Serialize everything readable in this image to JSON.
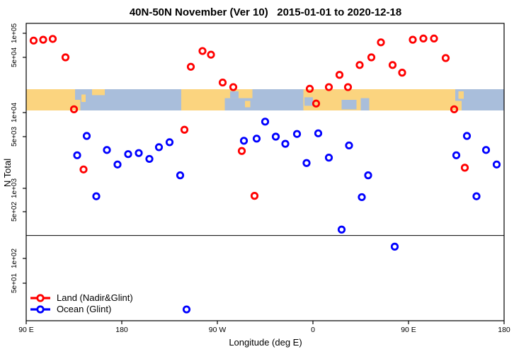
{
  "chart_title": "40N-50N November (Ver 10)   2015-01-01 to 2020-12-18",
  "legend": {
    "items": [
      {
        "label": "Land (Nadir&Glint)",
        "color": "#ff0000"
      },
      {
        "label": "Ocean (Glint)",
        "color": "#0000ff"
      }
    ]
  },
  "chart_data": {
    "type": "scatter",
    "title": "40N-50N November (Ver 10)   2015-01-01 to 2020-12-18",
    "xlabel": "Longitude (deg E)",
    "ylabel": "N Total",
    "x_axis": {
      "description": "longitude wrapping eastward; deg = degrees east of 90E along axis",
      "span_deg": 450,
      "ticks": [
        {
          "deg": 0,
          "label": "90 E"
        },
        {
          "deg": 90,
          "label": "180"
        },
        {
          "deg": 180,
          "label": "90 W"
        },
        {
          "deg": 270,
          "label": "0"
        },
        {
          "deg": 360,
          "label": "90 E"
        },
        {
          "deg": 450,
          "label": "180"
        }
      ]
    },
    "y_axis": {
      "scale": "log",
      "ticks": [
        {
          "value": 100000,
          "label": "1e+05"
        },
        {
          "value": 50000,
          "label": "5e+04"
        },
        {
          "value": 10000,
          "label": "1e+04"
        },
        {
          "value": 5000,
          "label": "5e+03"
        },
        {
          "value": 1000,
          "label": "1e+03"
        },
        {
          "value": 500,
          "label": "5e+02"
        },
        {
          "value": 100,
          "label": "1e+02"
        },
        {
          "value": 50,
          "label": "5e+01"
        }
      ]
    },
    "hline_value": 220,
    "map_band": {
      "description": "40N-50N latitude strip map drawn across plot, approx n range 10500-20000",
      "land_color": "#fbd47f",
      "ocean_color": "#a9bedb",
      "segments": [
        {
          "surface": "land",
          "from": 0,
          "to": 46
        },
        {
          "surface": "ocean",
          "from": 46,
          "to": 146
        },
        {
          "surface": "land",
          "from": 146,
          "to": 187
        },
        {
          "surface": "ocean",
          "from": 187,
          "to": 261
        },
        {
          "surface": "land",
          "from": 261,
          "to": 404
        },
        {
          "surface": "ocean",
          "from": 404,
          "to": 450
        }
      ],
      "patches": [
        {
          "surface": "land",
          "from": 46,
          "to": 51,
          "top": 0.5,
          "bot": 1
        },
        {
          "surface": "land",
          "from": 52,
          "to": 56,
          "top": 0.25,
          "bot": 0.6
        },
        {
          "surface": "land",
          "from": 62,
          "to": 74,
          "top": 0,
          "bot": 0.28
        },
        {
          "surface": "land",
          "from": 187,
          "to": 213,
          "top": 0,
          "bot": 0.42
        },
        {
          "surface": "ocean",
          "from": 192,
          "to": 200,
          "top": 0.1,
          "bot": 0.42
        },
        {
          "surface": "land",
          "from": 206,
          "to": 211,
          "top": 0.55,
          "bot": 0.85
        },
        {
          "surface": "ocean",
          "from": 262,
          "to": 270,
          "top": 0.38,
          "bot": 0.78
        },
        {
          "surface": "ocean",
          "from": 297,
          "to": 311,
          "top": 0.5,
          "bot": 0.95
        },
        {
          "surface": "ocean",
          "from": 315,
          "to": 323,
          "top": 0.42,
          "bot": 1
        },
        {
          "surface": "land",
          "from": 404,
          "to": 410,
          "top": 0.55,
          "bot": 1
        },
        {
          "surface": "land",
          "from": 407,
          "to": 412,
          "top": 0.1,
          "bot": 0.45
        }
      ]
    },
    "series": [
      {
        "name": "Land (Nadir&Glint)",
        "color": "#ff0000",
        "points": [
          {
            "d": 7,
            "n": 81000
          },
          {
            "d": 16,
            "n": 83000
          },
          {
            "d": 25,
            "n": 85000
          },
          {
            "d": 37,
            "n": 50000
          },
          {
            "d": 45,
            "n": 11000
          },
          {
            "d": 54,
            "n": 1800
          },
          {
            "d": 149,
            "n": 6100
          },
          {
            "d": 155,
            "n": 38000
          },
          {
            "d": 166,
            "n": 60000
          },
          {
            "d": 174,
            "n": 54000
          },
          {
            "d": 185,
            "n": 24000
          },
          {
            "d": 195,
            "n": 21000
          },
          {
            "d": 203,
            "n": 3200
          },
          {
            "d": 215,
            "n": 800
          },
          {
            "d": 267,
            "n": 20000
          },
          {
            "d": 273,
            "n": 13000
          },
          {
            "d": 285,
            "n": 21000
          },
          {
            "d": 295,
            "n": 30000
          },
          {
            "d": 303,
            "n": 21000
          },
          {
            "d": 314,
            "n": 40000
          },
          {
            "d": 325,
            "n": 50000
          },
          {
            "d": 334,
            "n": 77000
          },
          {
            "d": 345,
            "n": 40000
          },
          {
            "d": 354,
            "n": 32000
          },
          {
            "d": 364,
            "n": 83000
          },
          {
            "d": 374,
            "n": 86000
          },
          {
            "d": 384,
            "n": 86000
          },
          {
            "d": 395,
            "n": 49000
          },
          {
            "d": 403,
            "n": 11000
          },
          {
            "d": 413,
            "n": 1900
          }
        ]
      },
      {
        "name": "Ocean (Glint)",
        "color": "#0000ff",
        "points": [
          {
            "d": 48,
            "n": 2800
          },
          {
            "d": 57,
            "n": 5100
          },
          {
            "d": 66,
            "n": 790
          },
          {
            "d": 76,
            "n": 3300
          },
          {
            "d": 86,
            "n": 2100
          },
          {
            "d": 96,
            "n": 2900
          },
          {
            "d": 106,
            "n": 3000
          },
          {
            "d": 116,
            "n": 2500
          },
          {
            "d": 125,
            "n": 3600
          },
          {
            "d": 135,
            "n": 4200
          },
          {
            "d": 145,
            "n": 1500
          },
          {
            "d": 151,
            "n": 24
          },
          {
            "d": 205,
            "n": 4400
          },
          {
            "d": 217,
            "n": 4700
          },
          {
            "d": 225,
            "n": 7700
          },
          {
            "d": 235,
            "n": 5000
          },
          {
            "d": 244,
            "n": 4000
          },
          {
            "d": 255,
            "n": 5400
          },
          {
            "d": 264,
            "n": 2200
          },
          {
            "d": 275,
            "n": 5500
          },
          {
            "d": 285,
            "n": 2600
          },
          {
            "d": 297,
            "n": 270
          },
          {
            "d": 304,
            "n": 3800
          },
          {
            "d": 316,
            "n": 770
          },
          {
            "d": 322,
            "n": 1500
          },
          {
            "d": 347,
            "n": 150
          },
          {
            "d": 405,
            "n": 2800
          },
          {
            "d": 415,
            "n": 5100
          },
          {
            "d": 424,
            "n": 790
          },
          {
            "d": 433,
            "n": 3300
          },
          {
            "d": 443,
            "n": 2100
          }
        ]
      }
    ]
  }
}
